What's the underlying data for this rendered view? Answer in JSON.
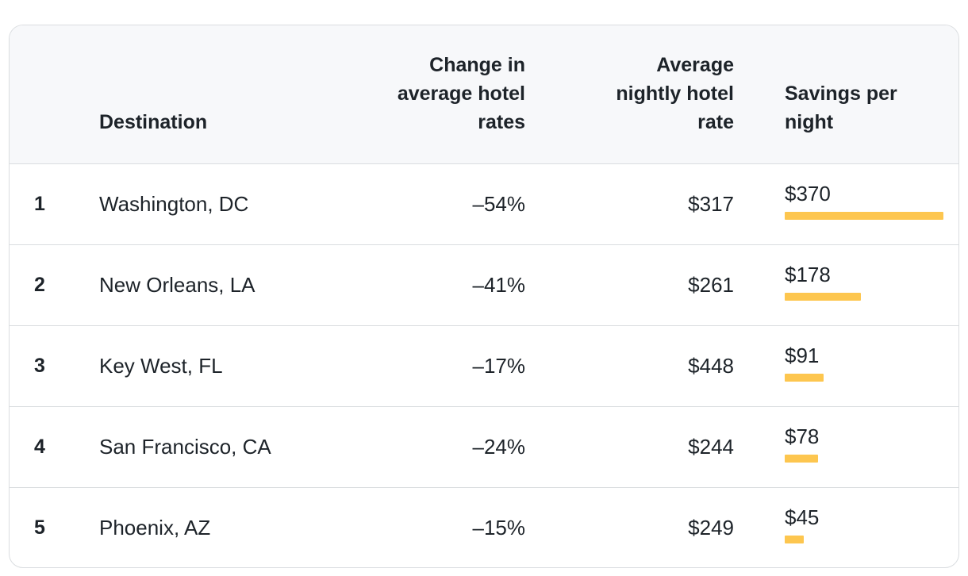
{
  "table": {
    "headers": {
      "rank": "",
      "destination": "Destination",
      "change": "Change in average hotel rates",
      "rate": "Average nightly hotel rate",
      "savings": "Savings per night"
    },
    "rows": [
      {
        "rank": "1",
        "destination": "Washington, DC",
        "change": "–54%",
        "rate": "$317",
        "savings": "$370",
        "savings_value": 370
      },
      {
        "rank": "2",
        "destination": "New Orleans, LA",
        "change": "–41%",
        "rate": "$261",
        "savings": "$178",
        "savings_value": 178
      },
      {
        "rank": "3",
        "destination": "Key West, FL",
        "change": "–17%",
        "rate": "$448",
        "savings": "$91",
        "savings_value": 91
      },
      {
        "rank": "4",
        "destination": "San Francisco, CA",
        "change": "–24%",
        "rate": "$244",
        "savings": "$78",
        "savings_value": 78
      },
      {
        "rank": "5",
        "destination": "Phoenix, AZ",
        "change": "–15%",
        "rate": "$249",
        "savings": "$45",
        "savings_value": 45
      }
    ]
  },
  "colors": {
    "bar": "#fdc64f",
    "header_bg": "#f7f8fa",
    "border": "#dadde0",
    "text": "#1d2329"
  }
}
